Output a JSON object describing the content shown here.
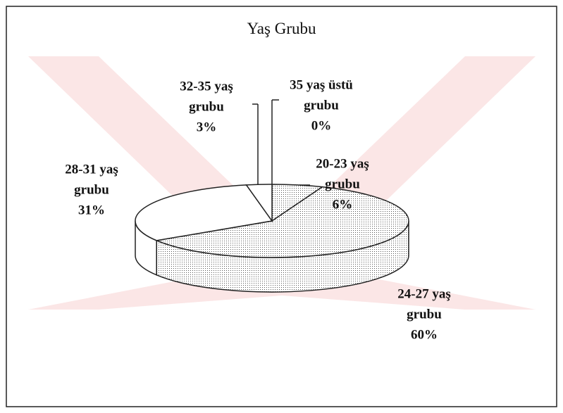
{
  "chart_data": {
    "type": "pie",
    "title": "Yaş Grubu",
    "categories": [
      "20-23 yaş grubu",
      "24-27 yaş grubu",
      "28-31 yaş grubu",
      "32-35 yaş grubu",
      "35 yaş üstü grubu"
    ],
    "values": [
      6,
      60,
      31,
      3,
      0
    ],
    "value_labels": [
      "6%",
      "60%",
      "31%",
      "3%",
      "0%"
    ],
    "colors": [
      "#d4d4d4",
      "#bdbdbd",
      "#ffffff",
      "#ffffff",
      "#ffffff"
    ]
  }
}
